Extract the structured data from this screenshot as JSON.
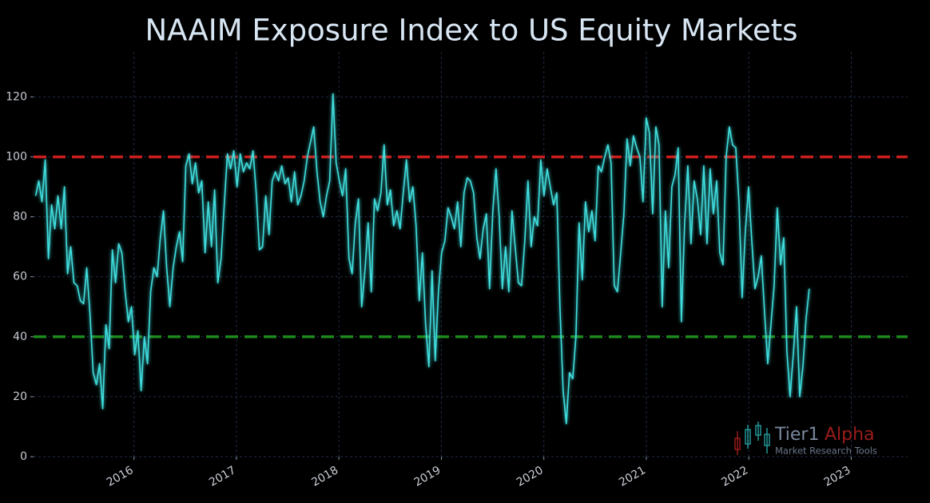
{
  "chart_data": {
    "type": "line",
    "title": "NAAIM Exposure Index to US Equity Markets",
    "color": "#3fdede",
    "grid": true,
    "xlim": [
      2015.02,
      2023.55
    ],
    "xticks": [
      2016,
      2017,
      2018,
      2019,
      2020,
      2021,
      2022,
      2023
    ],
    "ylim": [
      0,
      135
    ],
    "yticks": [
      0,
      20,
      40,
      60,
      80,
      100,
      120
    ],
    "reference_lines": [
      {
        "value": 100,
        "color": "#c81e1e"
      },
      {
        "value": 40,
        "color": "#1c8a1c"
      }
    ],
    "watermark": {
      "name": "Tier1",
      "accent": "Alpha",
      "tagline": "Market  Research Tools"
    },
    "x": [
      2015.04,
      2015.071,
      2015.102,
      2015.134,
      2015.165,
      2015.196,
      2015.227,
      2015.258,
      2015.29,
      2015.321,
      2015.352,
      2015.383,
      2015.414,
      2015.446,
      2015.477,
      2015.508,
      2015.539,
      2015.57,
      2015.602,
      2015.633,
      2015.664,
      2015.695,
      2015.726,
      2015.758,
      2015.789,
      2015.82,
      2015.851,
      2015.882,
      2015.914,
      2015.945,
      2015.976,
      2016.007,
      2016.038,
      2016.07,
      2016.101,
      2016.132,
      2016.163,
      2016.194,
      2016.226,
      2016.257,
      2016.288,
      2016.319,
      2016.35,
      2016.382,
      2016.413,
      2016.444,
      2016.475,
      2016.506,
      2016.538,
      2016.569,
      2016.6,
      2016.631,
      2016.662,
      2016.694,
      2016.725,
      2016.756,
      2016.787,
      2016.818,
      2016.85,
      2016.881,
      2016.912,
      2016.943,
      2016.974,
      2017.006,
      2017.037,
      2017.068,
      2017.099,
      2017.13,
      2017.162,
      2017.193,
      2017.224,
      2017.255,
      2017.286,
      2017.318,
      2017.349,
      2017.38,
      2017.411,
      2017.442,
      2017.474,
      2017.505,
      2017.536,
      2017.567,
      2017.598,
      2017.63,
      2017.661,
      2017.692,
      2017.723,
      2017.754,
      2017.786,
      2017.817,
      2017.848,
      2017.879,
      2017.91,
      2017.942,
      2017.973,
      2018.004,
      2018.035,
      2018.066,
      2018.098,
      2018.129,
      2018.16,
      2018.191,
      2018.222,
      2018.254,
      2018.285,
      2018.316,
      2018.347,
      2018.378,
      2018.41,
      2018.441,
      2018.472,
      2018.503,
      2018.534,
      2018.566,
      2018.597,
      2018.628,
      2018.659,
      2018.69,
      2018.722,
      2018.753,
      2018.784,
      2018.815,
      2018.846,
      2018.878,
      2018.909,
      2018.94,
      2018.971,
      2019.002,
      2019.034,
      2019.065,
      2019.096,
      2019.127,
      2019.158,
      2019.19,
      2019.221,
      2019.252,
      2019.283,
      2019.314,
      2019.346,
      2019.377,
      2019.408,
      2019.439,
      2019.47,
      2019.502,
      2019.533,
      2019.564,
      2019.595,
      2019.626,
      2019.658,
      2019.689,
      2019.72,
      2019.751,
      2019.782,
      2019.814,
      2019.845,
      2019.876,
      2019.907,
      2019.938,
      2019.97,
      2020.001,
      2020.032,
      2020.063,
      2020.094,
      2020.126,
      2020.157,
      2020.188,
      2020.219,
      2020.25,
      2020.282,
      2020.313,
      2020.344,
      2020.375,
      2020.406,
      2020.438,
      2020.469,
      2020.5,
      2020.531,
      2020.562,
      2020.594,
      2020.625,
      2020.656,
      2020.687,
      2020.718,
      2020.75,
      2020.781,
      2020.812,
      2020.843,
      2020.874,
      2020.906,
      2020.937,
      2020.968,
      2020.999,
      2021.03,
      2021.062,
      2021.093,
      2021.124,
      2021.155,
      2021.186,
      2021.218,
      2021.249,
      2021.28,
      2021.311,
      2021.342,
      2021.374,
      2021.405,
      2021.436,
      2021.467,
      2021.498,
      2021.53,
      2021.561,
      2021.592,
      2021.623,
      2021.654,
      2021.686,
      2021.717,
      2021.748,
      2021.779,
      2021.81,
      2021.842,
      2021.873,
      2021.904,
      2021.935,
      2021.966,
      2021.998,
      2022.029,
      2022.06,
      2022.091,
      2022.122,
      2022.154,
      2022.185,
      2022.216,
      2022.247,
      2022.278,
      2022.31,
      2022.341,
      2022.372,
      2022.403,
      2022.434,
      2022.466,
      2022.497,
      2022.528,
      2022.559,
      2022.59
    ],
    "values": [
      87,
      92,
      85,
      99,
      66,
      84,
      76,
      87,
      76,
      90,
      61,
      70,
      58,
      57,
      52,
      51,
      63,
      48,
      28,
      24,
      31,
      16,
      44,
      36,
      69,
      58,
      71,
      68,
      55,
      45,
      50,
      34,
      42,
      22,
      40,
      31,
      55,
      63,
      60,
      73,
      82,
      63,
      50,
      63,
      70,
      75,
      65,
      97,
      101,
      91,
      98,
      88,
      92,
      68,
      85,
      70,
      89,
      58,
      66,
      84,
      101,
      96,
      102,
      90,
      101,
      95,
      98,
      96,
      102,
      88,
      69,
      70,
      87,
      74,
      92,
      95,
      92,
      97,
      91,
      93,
      85,
      95,
      84,
      87,
      92,
      100,
      105,
      110,
      95,
      85,
      80,
      87,
      92,
      121,
      98,
      92,
      87,
      96,
      66,
      61,
      78,
      86,
      50,
      62,
      78,
      55,
      86,
      82,
      88,
      104,
      84,
      89,
      77,
      82,
      76,
      88,
      99,
      85,
      90,
      77,
      52,
      68,
      44,
      30,
      62,
      32,
      55,
      68,
      72,
      83,
      80,
      76,
      85,
      70,
      88,
      93,
      92,
      88,
      73,
      66,
      76,
      81,
      56,
      82,
      96,
      80,
      56,
      70,
      55,
      82,
      70,
      58,
      57,
      72,
      92,
      70,
      80,
      77,
      99,
      87,
      96,
      90,
      84,
      88,
      50,
      22,
      11,
      28,
      26,
      40,
      78,
      59,
      85,
      75,
      82,
      72,
      97,
      95,
      100,
      104,
      98,
      57,
      55,
      68,
      81,
      106,
      97,
      107,
      103,
      100,
      85,
      113,
      108,
      81,
      110,
      104,
      50,
      82,
      63,
      90,
      94,
      103,
      45,
      78,
      97,
      71,
      92,
      86,
      74,
      97,
      71,
      96,
      81,
      92,
      68,
      64,
      100,
      110,
      104,
      103,
      85,
      53,
      75,
      90,
      72,
      56,
      60,
      67,
      48,
      31,
      44,
      57,
      83,
      64,
      73,
      35,
      20,
      34,
      50,
      20,
      30,
      46,
      56
    ]
  }
}
